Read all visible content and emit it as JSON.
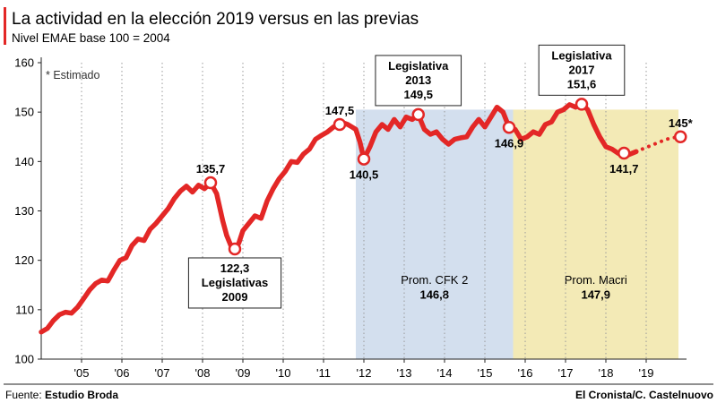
{
  "chart_data": {
    "type": "line",
    "title": "La actividad en la elección 2019 versus en las previas",
    "subtitle": "Nivel EMAE base 100 = 2004",
    "note": "* Estimado",
    "ylim": [
      100,
      160
    ],
    "y_ticks": [
      100,
      110,
      120,
      130,
      140,
      150,
      160
    ],
    "x_range": [
      2004.0,
      2020.0
    ],
    "x_ticks": [
      {
        "x": 2005,
        "label": "'05"
      },
      {
        "x": 2006,
        "label": "'06"
      },
      {
        "x": 2007,
        "label": "'07"
      },
      {
        "x": 2008,
        "label": "'08"
      },
      {
        "x": 2009,
        "label": "'09"
      },
      {
        "x": 2010,
        "label": "'10"
      },
      {
        "x": 2011,
        "label": "'11"
      },
      {
        "x": 2012,
        "label": "'12"
      },
      {
        "x": 2013,
        "label": "'13"
      },
      {
        "x": 2014,
        "label": "'14"
      },
      {
        "x": 2015,
        "label": "'15"
      },
      {
        "x": 2016,
        "label": "'16"
      },
      {
        "x": 2017,
        "label": "'17"
      },
      {
        "x": 2018,
        "label": "'18"
      },
      {
        "x": 2019,
        "label": "'19"
      }
    ],
    "grid": "vertical-dotted",
    "line_color": "#e32726",
    "series": [
      {
        "x": [
          2004.0,
          2004.15,
          2004.3,
          2004.45,
          2004.6,
          2004.75,
          2004.9,
          2005.05,
          2005.2,
          2005.35,
          2005.5,
          2005.65,
          2005.8,
          2005.95,
          2006.1,
          2006.25,
          2006.4,
          2006.55,
          2006.7,
          2006.85,
          2007.0,
          2007.15,
          2007.3,
          2007.45,
          2007.6,
          2007.75,
          2007.9,
          2008.05,
          2008.2,
          2008.35,
          2008.5,
          2008.6,
          2008.7,
          2008.8,
          2008.9,
          2009.0,
          2009.15,
          2009.3,
          2009.45,
          2009.6,
          2009.75,
          2009.9,
          2010.05,
          2010.2,
          2010.35,
          2010.5,
          2010.65,
          2010.8,
          2010.95,
          2011.1,
          2011.25,
          2011.4,
          2011.5,
          2011.6,
          2011.7,
          2011.8,
          2011.9,
          2012.0,
          2012.15,
          2012.3,
          2012.45,
          2012.6,
          2012.75,
          2012.9,
          2013.05,
          2013.2,
          2013.35,
          2013.5,
          2013.65,
          2013.8,
          2013.95,
          2014.1,
          2014.25,
          2014.4,
          2014.55,
          2014.7,
          2014.85,
          2015.0,
          2015.15,
          2015.3,
          2015.45,
          2015.6,
          2015.75,
          2015.9,
          2016.05,
          2016.2,
          2016.35,
          2016.5,
          2016.65,
          2016.8,
          2016.95,
          2017.1,
          2017.25,
          2017.4,
          2017.55,
          2017.7,
          2017.85,
          2018.0,
          2018.15,
          2018.3,
          2018.45,
          2018.6,
          2018.75
        ],
        "values": [
          105.5,
          106.2,
          107.8,
          109.0,
          109.5,
          109.3,
          110.5,
          112.2,
          114.0,
          115.3,
          116.0,
          115.8,
          118.0,
          120.0,
          120.5,
          123.0,
          124.3,
          124.0,
          126.3,
          127.5,
          129.0,
          130.5,
          132.5,
          134.0,
          135.0,
          133.8,
          135.2,
          134.5,
          135.7,
          133.5,
          128.0,
          125.0,
          123.0,
          122.3,
          123.5,
          126.0,
          127.5,
          129.0,
          128.5,
          132.0,
          134.5,
          136.5,
          138.0,
          140.0,
          139.8,
          141.5,
          142.5,
          144.5,
          145.3,
          146.0,
          147.0,
          147.5,
          147.8,
          147.5,
          147.0,
          146.5,
          144.0,
          140.5,
          143.0,
          146.0,
          147.5,
          146.5,
          148.5,
          147.0,
          149.0,
          148.5,
          149.5,
          146.5,
          145.5,
          146.0,
          144.5,
          143.5,
          144.5,
          144.8,
          145.0,
          147.0,
          148.5,
          147.0,
          149.0,
          151.0,
          150.0,
          146.9,
          146.5,
          144.5,
          145.0,
          146.0,
          145.5,
          147.5,
          148.0,
          150.0,
          150.5,
          151.5,
          151.0,
          151.6,
          150.5,
          147.5,
          145.0,
          143.0,
          142.5,
          141.7,
          141.0,
          141.5,
          142.0
        ]
      },
      {
        "name": "Estimado",
        "style": "dotted",
        "x": [
          2018.75,
          2018.9,
          2019.05,
          2019.2,
          2019.35,
          2019.5,
          2019.65,
          2019.85
        ],
        "values": [
          142.0,
          142.5,
          143.0,
          143.5,
          144.0,
          144.5,
          144.8,
          145.0
        ]
      }
    ],
    "shaded_regions": [
      {
        "x": [
          2011.8,
          2015.7
        ],
        "color": "#d3dfee",
        "label": "Prom. CFK 2",
        "value": "146,8"
      },
      {
        "x": [
          2015.7,
          2019.8
        ],
        "color": "#f3eab6",
        "label": "Prom. Macri",
        "value": "147,9"
      }
    ],
    "annotations": [
      {
        "x": 2008.2,
        "y": 135.7,
        "lines": [
          "135,7"
        ],
        "boxed": false,
        "pos": "above"
      },
      {
        "x": 2008.8,
        "y": 122.3,
        "lines": [
          "122,3",
          "Legislativas",
          "2009"
        ],
        "boxed": true,
        "pos": "below"
      },
      {
        "x": 2011.4,
        "y": 147.5,
        "lines": [
          "147,5"
        ],
        "boxed": false,
        "pos": "above"
      },
      {
        "x": 2012.0,
        "y": 140.5,
        "lines": [
          "140,5"
        ],
        "boxed": false,
        "pos": "below"
      },
      {
        "x": 2013.35,
        "y": 149.5,
        "lines": [
          "Legislativa",
          "2013",
          "149,5"
        ],
        "boxed": true,
        "pos": "above"
      },
      {
        "x": 2015.6,
        "y": 146.9,
        "lines": [
          "146,9"
        ],
        "boxed": false,
        "pos": "below"
      },
      {
        "x": 2017.4,
        "y": 151.6,
        "lines": [
          "Legislativa",
          "2017",
          "151,6"
        ],
        "boxed": true,
        "pos": "above"
      },
      {
        "x": 2018.45,
        "y": 141.7,
        "lines": [
          "141,7"
        ],
        "boxed": false,
        "pos": "below"
      },
      {
        "x": 2019.85,
        "y": 145.0,
        "lines": [
          "145*"
        ],
        "boxed": false,
        "pos": "above"
      }
    ]
  },
  "footer": {
    "source_label": "Fuente: ",
    "source_value": "Estudio Broda",
    "credit": "El Cronista/C. Castelnuovo"
  }
}
